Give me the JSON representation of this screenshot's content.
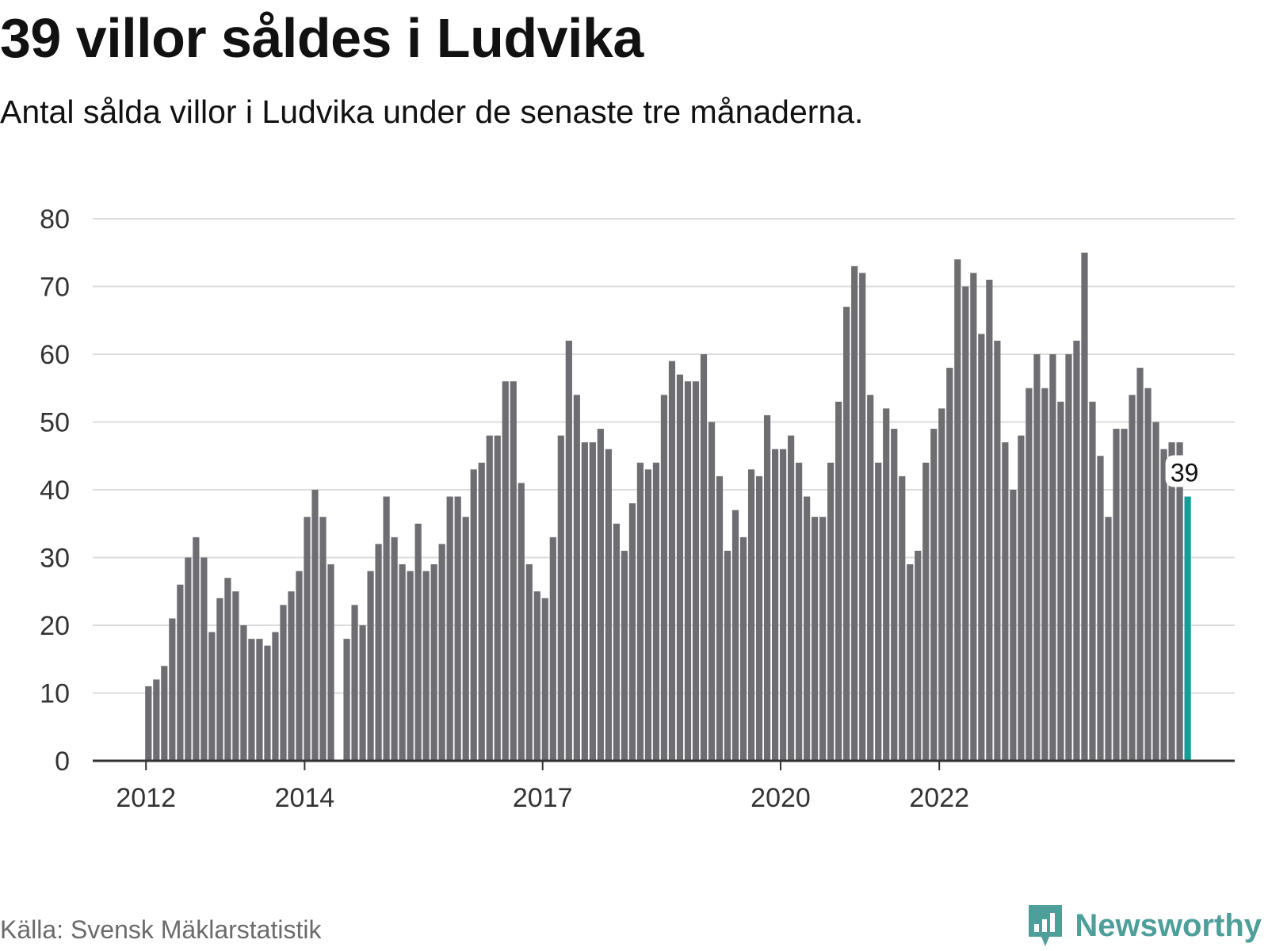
{
  "header": {
    "title": "39 villor såldes i Ludvika",
    "subtitle": "Antal sålda villor i Ludvika under de senaste tre månaderna."
  },
  "footer": {
    "source": "Källa: Svensk Mäklarstatistik",
    "brand": "Newsworthy"
  },
  "colors": {
    "bar": "#6d6d72",
    "highlight": "#139e97",
    "grid": "#dcdcdc",
    "axis": "#333333",
    "brand": "#4e9e9a"
  },
  "chart_data": {
    "type": "bar",
    "title": "39 villor såldes i Ludvika",
    "ylim": [
      0,
      80
    ],
    "yticks": [
      0,
      10,
      20,
      30,
      40,
      50,
      60,
      70,
      80
    ],
    "xticks": [
      {
        "label": "2012",
        "index": 0
      },
      {
        "label": "2014",
        "index": 20
      },
      {
        "label": "2017",
        "index": 50
      },
      {
        "label": "2020",
        "index": 80
      },
      {
        "label": "2022",
        "index": 100
      }
    ],
    "grid": true,
    "values": [
      11,
      12,
      14,
      21,
      26,
      30,
      33,
      30,
      19,
      24,
      27,
      25,
      20,
      18,
      18,
      17,
      19,
      23,
      25,
      28,
      36,
      40,
      36,
      29,
      0,
      18,
      23,
      20,
      28,
      32,
      39,
      33,
      29,
      28,
      35,
      28,
      29,
      32,
      39,
      39,
      36,
      43,
      44,
      48,
      48,
      56,
      56,
      41,
      29,
      25,
      24,
      33,
      48,
      62,
      54,
      47,
      47,
      49,
      46,
      35,
      31,
      38,
      44,
      43,
      44,
      54,
      59,
      57,
      56,
      56,
      60,
      50,
      42,
      31,
      37,
      33,
      43,
      42,
      51,
      46,
      46,
      48,
      44,
      39,
      36,
      36,
      44,
      53,
      67,
      73,
      72,
      54,
      44,
      52,
      49,
      42,
      29,
      31,
      44,
      49,
      52,
      58,
      74,
      70,
      72,
      63,
      71,
      62,
      47,
      40,
      48,
      55,
      60,
      55,
      60,
      53,
      60,
      62,
      75,
      53,
      45,
      36,
      49,
      49,
      54,
      58,
      55,
      50,
      46,
      47,
      47,
      39
    ],
    "highlight_label": "39"
  }
}
